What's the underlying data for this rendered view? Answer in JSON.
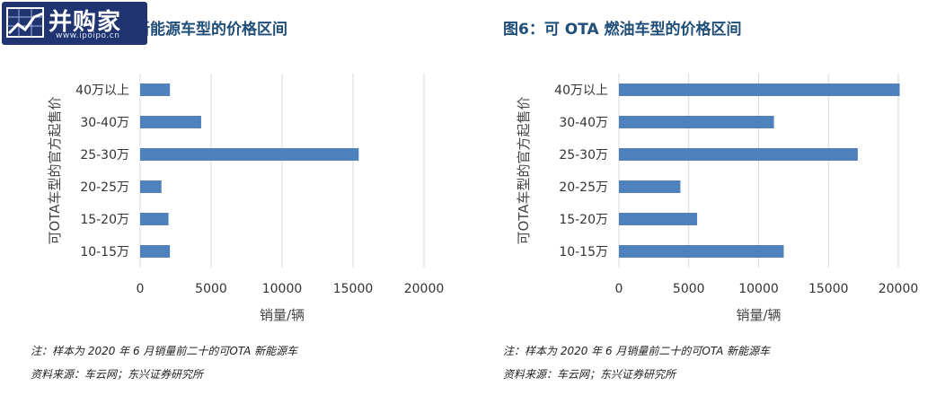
{
  "logo": {
    "text": "并购家",
    "sub": "www.ipoipo.cn"
  },
  "titles": {
    "left": "新能源车型的价格区间",
    "right": "图6：可 OTA 燃油车型的价格区间"
  },
  "notes": {
    "left_note": "注：样本为 2020 年 6 月销量前二十的可OTA 新能源车",
    "left_source": "资料来源：车云网；东兴证券研究所",
    "right_note": "注：样本为 2020 年 6 月销量前二十的可OTA 新能源车",
    "right_source": "资料来源：车云网；东兴证券研究所"
  },
  "colors": {
    "bar": "#4f81bd",
    "grid": "#d9d9d9",
    "title": "#1f4e79"
  },
  "chart_data": [
    {
      "type": "bar",
      "orientation": "horizontal",
      "title": "新能源车型的价格区间",
      "categories": [
        "40万以上",
        "30-40万",
        "25-30万",
        "20-25万",
        "15-20万",
        "10-15万"
      ],
      "values": [
        2100,
        4300,
        15400,
        1500,
        2000,
        2100
      ],
      "xlabel": "销量/辆",
      "ylabel": "可OTA车型的官方起售价",
      "xlim": [
        0,
        20000
      ],
      "xticks": [
        "0",
        "5000",
        "10000",
        "15000",
        "20000"
      ],
      "grid": true
    },
    {
      "type": "bar",
      "orientation": "horizontal",
      "title": "图6：可 OTA 燃油车型的价格区间",
      "categories": [
        "40万以上",
        "30-40万",
        "25-30万",
        "20-25万",
        "15-20万",
        "10-15万"
      ],
      "values": [
        20100,
        11100,
        17100,
        4400,
        5600,
        11800
      ],
      "xlabel": "销量/辆",
      "ylabel": "可OTA车型的官方起售价",
      "xlim": [
        0,
        20000
      ],
      "xticks": [
        "0",
        "5000",
        "10000",
        "15000",
        "20000"
      ],
      "grid": true
    }
  ]
}
